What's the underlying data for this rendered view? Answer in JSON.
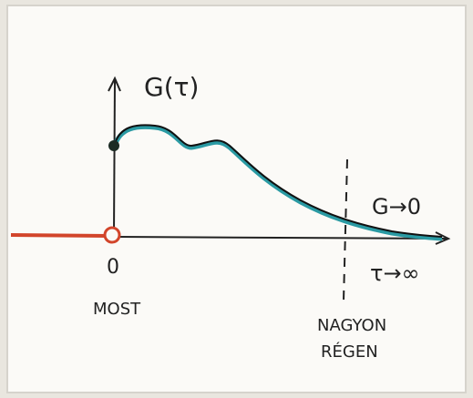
{
  "labels": {
    "y_axis": "G(τ)",
    "origin": "0",
    "now": "MOST",
    "limit_value": "G→0",
    "limit_time": "τ→∞",
    "long_ago_line1": "NAGYON",
    "long_ago_line2": "RÉGEN"
  }
}
